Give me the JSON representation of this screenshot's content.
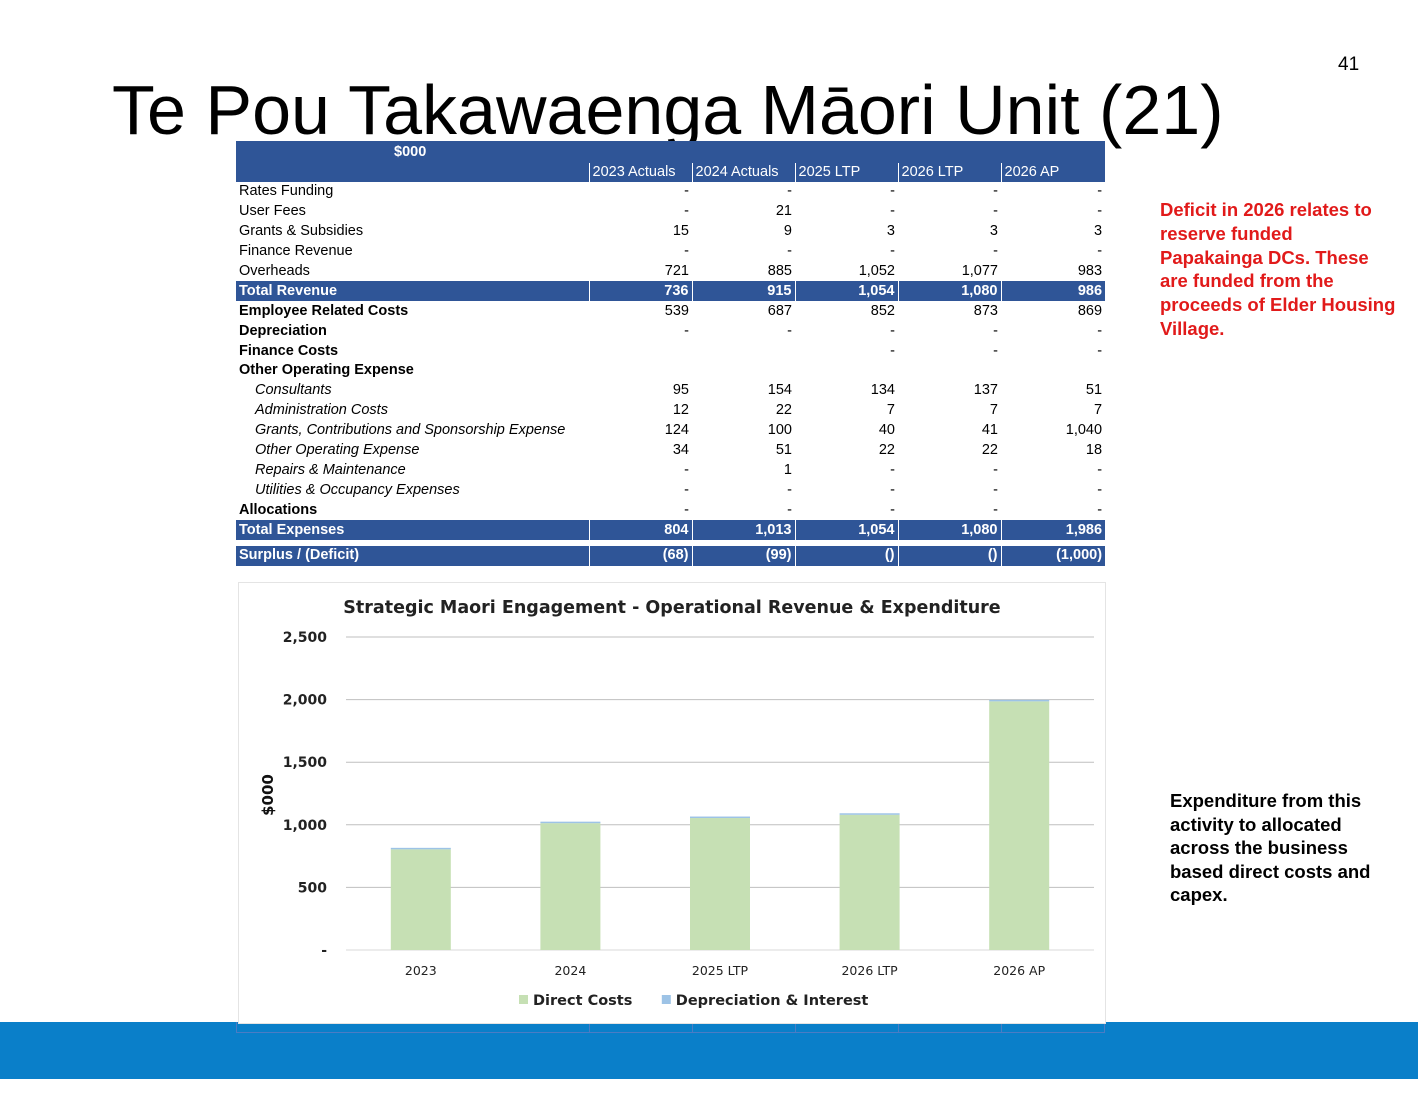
{
  "page_number": "41",
  "title": "Te Pou Takawaenga Māori Unit (21)",
  "table": {
    "caption": "$000",
    "columns": [
      "2023 Actuals",
      "2024 Actuals",
      "2025 LTP",
      "2026 LTP",
      "2026 AP"
    ],
    "rows": [
      {
        "label": "Rates Funding",
        "style": "normal",
        "values": [
          "-",
          "-",
          "-",
          "-",
          "-"
        ]
      },
      {
        "label": "User Fees",
        "style": "normal",
        "values": [
          "-",
          "21",
          "-",
          "-",
          "-"
        ]
      },
      {
        "label": "Grants & Subsidies",
        "style": "normal",
        "values": [
          "15",
          "9",
          "3",
          "3",
          "3"
        ]
      },
      {
        "label": "Finance Revenue",
        "style": "normal",
        "values": [
          "-",
          "-",
          "-",
          "-",
          "-"
        ]
      },
      {
        "label": "Overheads",
        "style": "normal",
        "values": [
          "721",
          "885",
          "1,052",
          "1,077",
          "983"
        ]
      },
      {
        "label": "Total Revenue",
        "style": "total",
        "values": [
          "736",
          "915",
          "1,054",
          "1,080",
          "986"
        ]
      },
      {
        "label": "Employee Related Costs",
        "style": "bold",
        "values": [
          "539",
          "687",
          "852",
          "873",
          "869"
        ]
      },
      {
        "label": "Depreciation",
        "style": "bold",
        "values": [
          "-",
          "-",
          "-",
          "-",
          "-"
        ]
      },
      {
        "label": "Finance Costs",
        "style": "bold",
        "values": [
          "",
          "",
          "-",
          "-",
          "-"
        ]
      },
      {
        "label": "Other Operating  Expense",
        "style": "bold",
        "values": [
          "",
          "",
          "",
          "",
          ""
        ]
      },
      {
        "label": "Consultants",
        "style": "sub",
        "values": [
          "95",
          "154",
          "134",
          "137",
          "51"
        ]
      },
      {
        "label": "Administration Costs",
        "style": "sub",
        "values": [
          "12",
          "22",
          "7",
          "7",
          "7"
        ]
      },
      {
        "label": "Grants, Contributions and Sponsorship Expense",
        "style": "sub",
        "values": [
          "124",
          "100",
          "40",
          "41",
          "1,040"
        ]
      },
      {
        "label": "Other Operating Expense",
        "style": "sub",
        "values": [
          "34",
          "51",
          "22",
          "22",
          "18"
        ]
      },
      {
        "label": "Repairs & Maintenance",
        "style": "sub",
        "values": [
          "-",
          "1",
          "-",
          "-",
          "-"
        ]
      },
      {
        "label": "Utilities & Occupancy Expenses",
        "style": "sub",
        "values": [
          "-",
          "-",
          "-",
          "-",
          "-"
        ]
      },
      {
        "label": "Allocations",
        "style": "bold",
        "values": [
          "-",
          "-",
          "-",
          "-",
          "-"
        ]
      },
      {
        "label": "Total Expenses",
        "style": "total",
        "values": [
          "804",
          "1,013",
          "1,054",
          "1,080",
          "1,986"
        ]
      },
      {
        "label": "Surplus / (Deficit)",
        "style": "total",
        "values": [
          "(68)",
          "(99)",
          "()",
          "()",
          "(1,000)"
        ]
      }
    ]
  },
  "chart_data": {
    "type": "bar",
    "title": "Strategic Maori Engagement - Operational Revenue & Expenditure",
    "xlabel": "",
    "ylabel": "$000",
    "categories": [
      "2023",
      "2024",
      "2025 LTP",
      "2026 LTP",
      "2026 AP"
    ],
    "stacked": true,
    "series": [
      {
        "name": "Direct Costs",
        "color": "#c6e0b4",
        "values": [
          804,
          1013,
          1054,
          1080,
          1986
        ]
      },
      {
        "name": "Depreciation & Interest",
        "color": "#9dc3e6",
        "values": [
          0,
          0,
          0,
          0,
          0
        ]
      }
    ],
    "ylim": [
      0,
      2500
    ],
    "y_ticks": [
      0,
      500,
      1000,
      1500,
      2000,
      2500
    ],
    "y_tick_labels": [
      "-",
      "500",
      "1,000",
      "1,500",
      "2,000",
      "2,500"
    ],
    "grid": true,
    "legend": "bottom"
  },
  "notes": {
    "deficit": "Deficit in 2026 relates to reserve funded Papakainga DCs. These are funded from the proceeds of Elder Housing Village.",
    "expenditure": "Expenditure from this activity to allocated across the business based direct costs and capex."
  },
  "colors": {
    "table_header": "#2f5597",
    "deficit_note": "#e11a1a",
    "footer_bar": "#0a7fc9"
  }
}
